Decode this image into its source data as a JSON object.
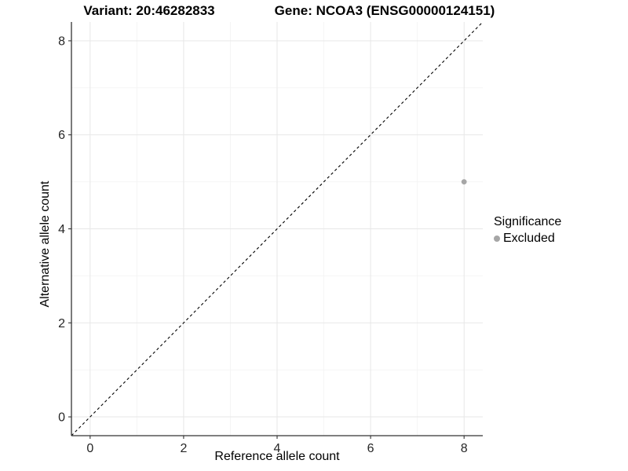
{
  "titles": {
    "variant": "Variant: 20:46282833",
    "gene": "Gene: NCOA3 (ENSG00000124151)"
  },
  "legend": {
    "title": "Significance",
    "items": [
      {
        "label": "Excluded",
        "color": "#a6a6a6"
      }
    ]
  },
  "colors": {
    "grid_major": "#e7e7e7",
    "grid_minor": "#f4f4f4",
    "axis_line": "#333333",
    "tick_text": "#262626",
    "identity_line": "#000000",
    "point": "#a6a6a6"
  },
  "chart_data": {
    "type": "scatter",
    "xlabel": "Reference allele count",
    "ylabel": "Alternative allele count",
    "xlim": [
      -0.4,
      8.4
    ],
    "ylim": [
      -0.4,
      8.4
    ],
    "xticks": [
      0,
      2,
      4,
      6,
      8
    ],
    "yticks": [
      0,
      2,
      4,
      6,
      8
    ],
    "grid": "major+minor",
    "legend_position": "right",
    "identity_line": {
      "style": "dashed",
      "from": [
        -0.4,
        -0.4
      ],
      "to": [
        8.4,
        8.4
      ]
    },
    "series": [
      {
        "name": "Excluded",
        "color": "#a6a6a6",
        "points": [
          {
            "x": 8,
            "y": 5
          }
        ]
      }
    ]
  }
}
